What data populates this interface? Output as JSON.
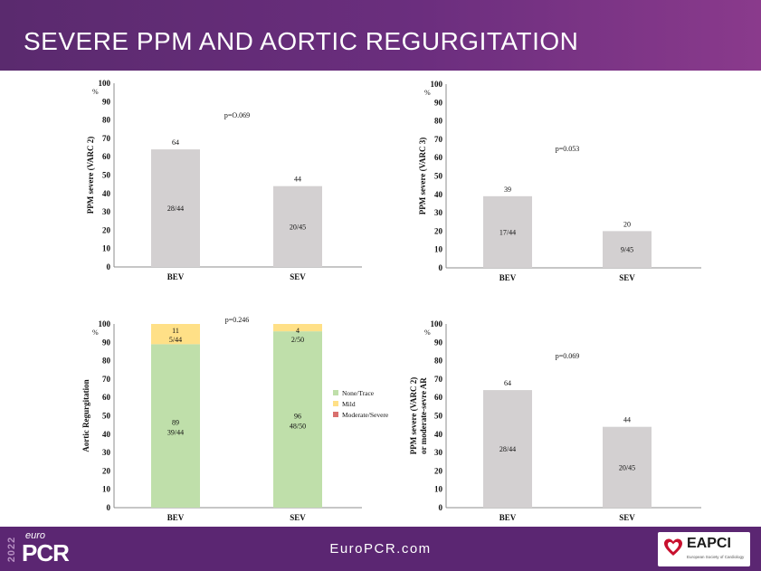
{
  "slide": {
    "title": "SEVERE PPM AND AORTIC REGURGITATION",
    "footer_url": "EuroPCR.com",
    "logo": {
      "year": "2022",
      "euro": "euro",
      "pcr": "PCR"
    },
    "eapci": {
      "name": "EAPCI",
      "sub": "European Society of Cardiology"
    }
  },
  "colors": {
    "bar": "#d3d0d1",
    "none_trace": "#bfdfaa",
    "mild": "#ffe087",
    "moderate_severe": "#d9706e"
  },
  "chart_data": [
    {
      "type": "bar",
      "ylabel": "PPM severe (VARC 2)",
      "yunit": "%",
      "ylim": [
        0,
        100
      ],
      "yticks": [
        0,
        10,
        20,
        30,
        40,
        50,
        60,
        70,
        80,
        90,
        100
      ],
      "categories": [
        "BEV",
        "SEV"
      ],
      "values": [
        64,
        44
      ],
      "counts": [
        "28/44",
        "20/45"
      ],
      "value_labels": [
        "64",
        "44"
      ],
      "pvalue": "p=O.069",
      "grid": false
    },
    {
      "type": "bar",
      "ylabel": "PPM severe (VARC 3)",
      "yunit": "%",
      "ylim": [
        0,
        100
      ],
      "yticks": [
        0,
        10,
        20,
        30,
        40,
        50,
        60,
        70,
        80,
        90,
        100
      ],
      "categories": [
        "BEV",
        "SEV"
      ],
      "values": [
        39,
        20
      ],
      "counts": [
        "17/44",
        "9/45"
      ],
      "value_labels": [
        "39",
        "20"
      ],
      "pvalue": "p=0.053",
      "grid": false
    },
    {
      "type": "bar",
      "stacked": true,
      "ylabel": "Aortic Regurgitation",
      "yunit": "%",
      "ylim": [
        0,
        100
      ],
      "yticks": [
        0,
        10,
        20,
        30,
        40,
        50,
        60,
        70,
        80,
        90,
        100
      ],
      "categories": [
        "BEV",
        "SEV"
      ],
      "series": [
        {
          "name": "None/Trace",
          "values": [
            89,
            96
          ],
          "value_labels": [
            "89",
            "96"
          ],
          "counts": [
            "39/44",
            "48/50"
          ]
        },
        {
          "name": "Mild",
          "values": [
            11,
            4
          ],
          "value_labels": [
            "11",
            "4"
          ],
          "counts": [
            "5/44",
            "2/50"
          ]
        },
        {
          "name": "Moderate/Severe",
          "values": [
            0,
            0
          ]
        }
      ],
      "pvalue": "p=0.246",
      "legend": "right",
      "grid": false
    },
    {
      "type": "bar",
      "ylabel": "PPM severe (VARC 2)",
      "ylabel2": "or moderate-sevre AR",
      "yunit": "%",
      "ylim": [
        0,
        100
      ],
      "yticks": [
        0,
        10,
        20,
        30,
        40,
        50,
        60,
        70,
        80,
        90,
        100
      ],
      "categories": [
        "BEV",
        "SEV"
      ],
      "values": [
        64,
        44
      ],
      "counts": [
        "28/44",
        "20/45"
      ],
      "value_labels": [
        "64",
        "44"
      ],
      "pvalue": "p=0.069",
      "grid": false
    }
  ]
}
